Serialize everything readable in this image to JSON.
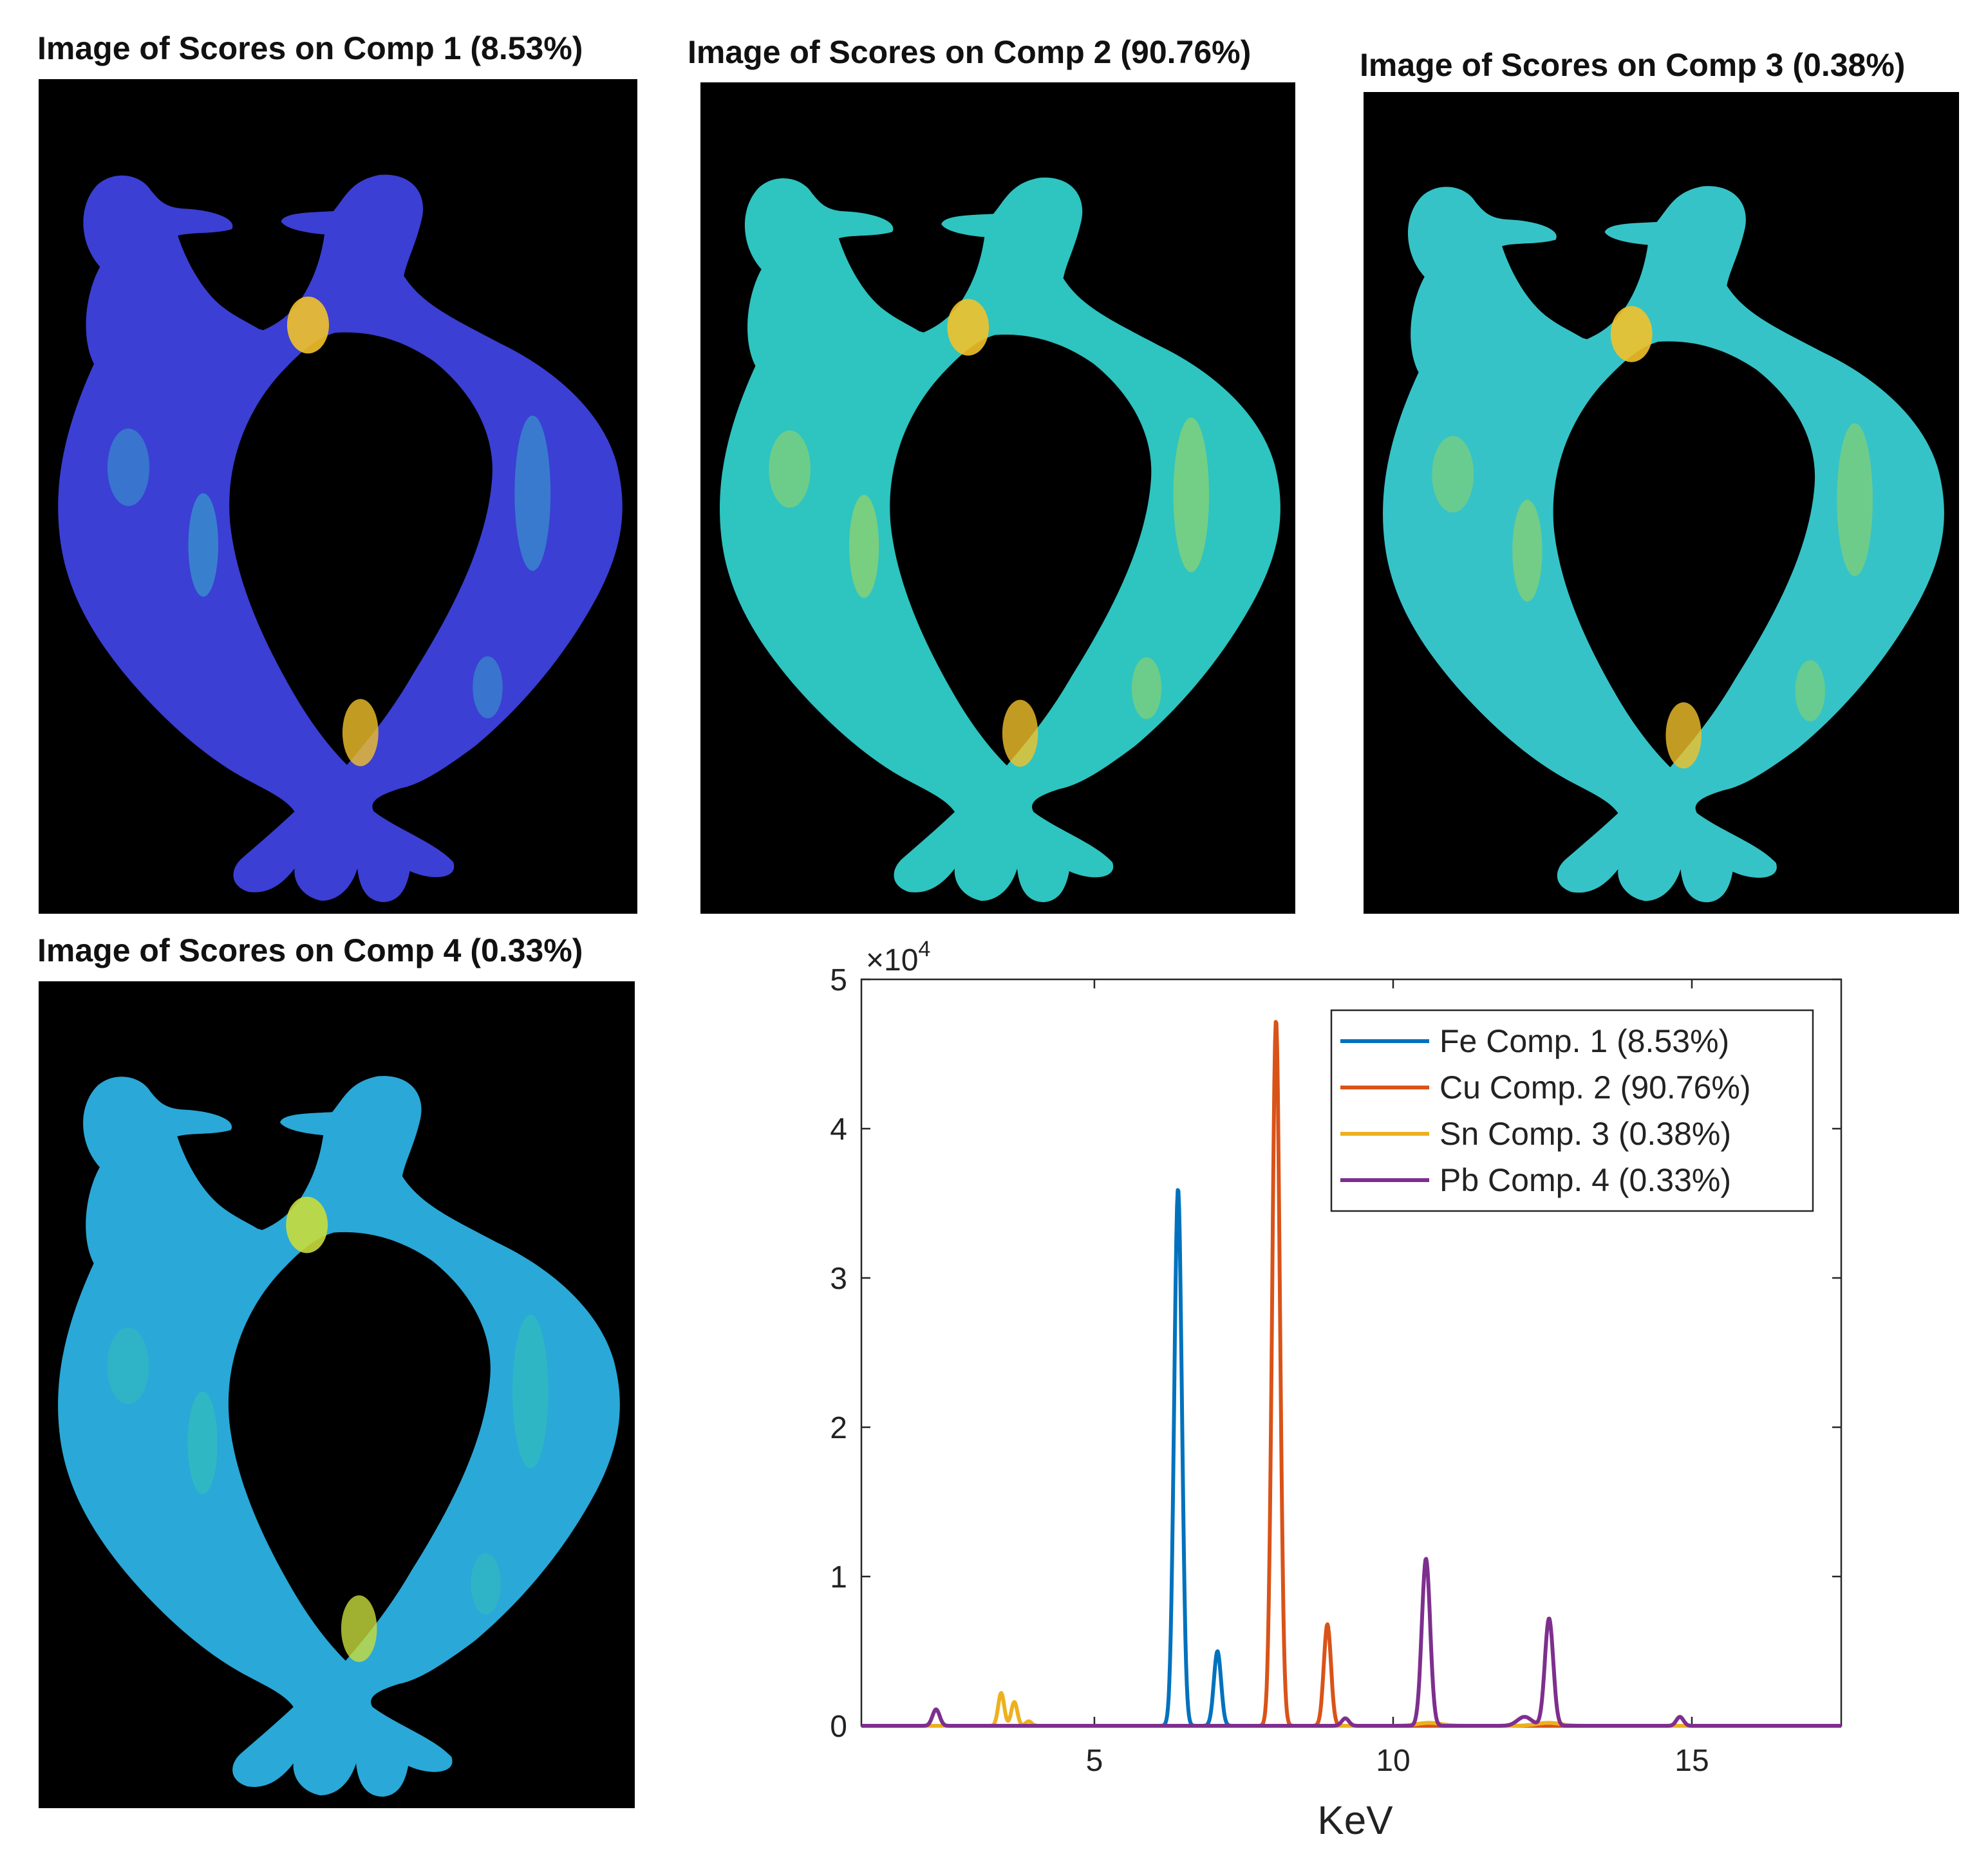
{
  "panels": [
    {
      "title": "Image of Scores on Comp 1 (8.53%)",
      "body_color": "#3b3fd4",
      "hot_color": "#f2c22a",
      "warm_color": "#37b6c8"
    },
    {
      "title": "Image of Scores on Comp 2 (90.76%)",
      "body_color": "#2ec4c0",
      "hot_color": "#f2c22a",
      "warm_color": "#b7d94a"
    },
    {
      "title": "Image of Scores on Comp 3 (0.38%)",
      "body_color": "#36c3c7",
      "hot_color": "#f2c22a",
      "warm_color": "#a6d650"
    },
    {
      "title": "Image of Scores on Comp 4 (0.33%)",
      "body_color": "#2aa8d8",
      "hot_color": "#c8dc3c",
      "warm_color": "#33c4b2"
    }
  ],
  "chart_data": {
    "type": "line",
    "xlabel": "KeV",
    "ylabel": "",
    "y_exponent_label": "×10",
    "y_exponent_power": "4",
    "xlim": [
      1.1,
      17.5
    ],
    "ylim": [
      0,
      5
    ],
    "xticks": [
      5,
      10,
      15
    ],
    "yticks": [
      0,
      1,
      2,
      3,
      4,
      5
    ],
    "legend_position": "top-right",
    "series": [
      {
        "name": "Fe Comp. 1 (8.53%)",
        "color": "#0072bd",
        "peaks": [
          {
            "x": 6.4,
            "y": 3.6,
            "w": 0.065
          },
          {
            "x": 7.06,
            "y": 0.5,
            "w": 0.06
          }
        ]
      },
      {
        "name": "Cu Comp. 2 (90.76%)",
        "color": "#d95319",
        "peaks": [
          {
            "x": 8.04,
            "y": 4.73,
            "w": 0.065
          },
          {
            "x": 8.9,
            "y": 0.68,
            "w": 0.06
          }
        ]
      },
      {
        "name": "Sn Comp. 3 (0.38%)",
        "color": "#edb120",
        "peaks": [
          {
            "x": 3.44,
            "y": 0.22,
            "w": 0.05
          },
          {
            "x": 3.66,
            "y": 0.16,
            "w": 0.05
          },
          {
            "x": 3.9,
            "y": 0.03,
            "w": 0.05
          },
          {
            "x": 10.6,
            "y": 0.02,
            "w": 0.2
          },
          {
            "x": 12.6,
            "y": 0.02,
            "w": 0.2
          }
        ]
      },
      {
        "name": "Pb Comp. 4 (0.33%)",
        "color": "#7e2f8e",
        "peaks": [
          {
            "x": 2.35,
            "y": 0.11,
            "w": 0.06
          },
          {
            "x": 9.2,
            "y": 0.05,
            "w": 0.06
          },
          {
            "x": 10.55,
            "y": 1.12,
            "w": 0.07
          },
          {
            "x": 12.2,
            "y": 0.06,
            "w": 0.12
          },
          {
            "x": 12.61,
            "y": 0.72,
            "w": 0.07
          },
          {
            "x": 14.8,
            "y": 0.06,
            "w": 0.06
          }
        ]
      }
    ]
  }
}
